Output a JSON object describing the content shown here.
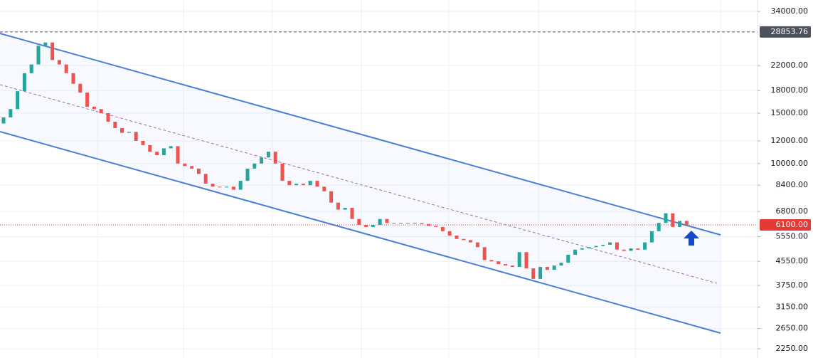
{
  "chart_data": {
    "type": "candlestick",
    "open": [
      13800,
      14500,
      15500,
      17900,
      20700,
      22200,
      25800,
      26500,
      23000,
      22200,
      20700,
      19000,
      17700,
      15800,
      15500,
      15000,
      14000,
      13300,
      12800,
      12900,
      12000,
      11600,
      11000,
      10700,
      11300,
      11500,
      10000,
      9800,
      9600,
      9200,
      8500,
      8300,
      8250,
      8300,
      8100,
      8700,
      9600,
      10000,
      10500,
      11000,
      10000,
      8700,
      8400,
      8500,
      8400,
      8700,
      8300,
      8000,
      7300,
      6900,
      7000,
      6400,
      6100,
      6000,
      6100,
      6400,
      6200,
      6200,
      6200,
      6200,
      6200,
      6150,
      6050,
      6000,
      5800,
      5600,
      5450,
      5400,
      5300,
      5100,
      4600,
      4550,
      4450,
      4400,
      4350,
      4900,
      4300,
      3950,
      4350,
      4250,
      4400,
      4500,
      4800,
      5000,
      5050,
      5100,
      5150,
      5200,
      5300,
      5000,
      4950,
      5050,
      5000,
      5300,
      5800,
      6200,
      6700,
      6000,
      6300
    ],
    "close": [
      14500,
      15500,
      17900,
      20700,
      22200,
      25800,
      26500,
      23000,
      22200,
      20700,
      19000,
      17700,
      15800,
      15500,
      15000,
      14000,
      13300,
      12800,
      12900,
      12000,
      11600,
      11000,
      10700,
      11300,
      11500,
      10000,
      9800,
      9600,
      9200,
      8500,
      8300,
      8250,
      8300,
      8100,
      8700,
      9600,
      10000,
      10500,
      11000,
      10000,
      8700,
      8400,
      8500,
      8400,
      8700,
      8300,
      8000,
      7300,
      6900,
      7000,
      6400,
      6100,
      6000,
      6100,
      6400,
      6200,
      6200,
      6200,
      6200,
      6200,
      6150,
      6050,
      6000,
      5800,
      5600,
      5450,
      5400,
      5300,
      5100,
      4600,
      4550,
      4450,
      4400,
      4350,
      4900,
      4300,
      3950,
      4350,
      4250,
      4400,
      4500,
      4800,
      5000,
      5050,
      5100,
      5150,
      5200,
      5300,
      5000,
      4950,
      5050,
      5000,
      5300,
      5800,
      6200,
      6700,
      6000,
      6300,
      6100
    ],
    "up_color": "#26a69a",
    "down_color": "#ef5350",
    "log_scale": true,
    "grid": true,
    "ylim": [
      2090,
      37300
    ],
    "yticks": [
      {
        "value": 34000,
        "label": "34000.00"
      },
      {
        "value": 22000,
        "label": "22000.00"
      },
      {
        "value": 18000,
        "label": "18000.00"
      },
      {
        "value": 15000,
        "label": "15000.00"
      },
      {
        "value": 12000,
        "label": "12000.00"
      },
      {
        "value": 10000,
        "label": "10000.00"
      },
      {
        "value": 8400,
        "label": "8400.00"
      },
      {
        "value": 6800,
        "label": "6800.00"
      },
      {
        "value": 5550,
        "label": "5550.00"
      },
      {
        "value": 4550,
        "label": "4550.00"
      },
      {
        "value": 3750,
        "label": "3750.00"
      },
      {
        "value": 3150,
        "label": "3150.00"
      },
      {
        "value": 2650,
        "label": "2650.00"
      },
      {
        "value": 2250,
        "label": "2250.00"
      }
    ],
    "price_lines": [
      {
        "value": 28853.76,
        "label": "28853.76",
        "color": "#4c525e"
      },
      {
        "value": 6100,
        "label": "6100.00",
        "color": "#e53935"
      }
    ]
  }
}
